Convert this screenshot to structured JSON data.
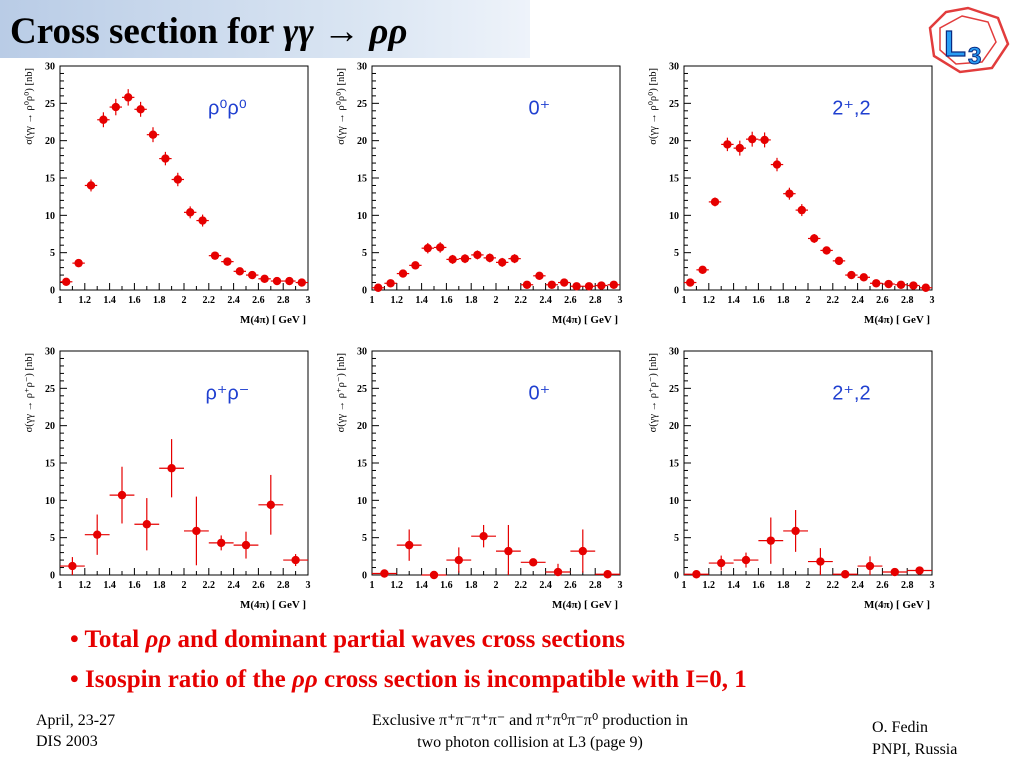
{
  "title": {
    "text": "Cross section for ",
    "formula": "γγ → ρρ"
  },
  "logo": {
    "text": "L",
    "sub": "3"
  },
  "plot_axis": {
    "xlabel": "M(4π) [ GeV ]",
    "x_ticks": [
      "1",
      "1.2",
      "1.4",
      "1.6",
      "1.8",
      "2",
      "2.2",
      "2.4",
      "2.6",
      "2.8",
      "3"
    ],
    "y_ticks": [
      "0",
      "5",
      "10",
      "15",
      "20",
      "25",
      "30"
    ],
    "ylabel_neutral": "σ(γγ → ρ⁰ρ⁰) [nb]",
    "ylabel_charged": "σ(γγ → ρ⁺ρ⁻) [nb]"
  },
  "chart_data": [
    {
      "type": "scatter",
      "label": "ρ⁰ρ⁰",
      "xlim": [
        1,
        3
      ],
      "ylim": [
        0,
        30
      ],
      "points": [
        {
          "x": 1.05,
          "y": 1.1,
          "err": 0.4
        },
        {
          "x": 1.15,
          "y": 3.6,
          "err": 0.5
        },
        {
          "x": 1.25,
          "y": 14.0,
          "err": 0.8
        },
        {
          "x": 1.35,
          "y": 22.8,
          "err": 1.0
        },
        {
          "x": 1.45,
          "y": 24.5,
          "err": 1.1
        },
        {
          "x": 1.55,
          "y": 25.8,
          "err": 1.1
        },
        {
          "x": 1.65,
          "y": 24.2,
          "err": 1.0
        },
        {
          "x": 1.75,
          "y": 20.8,
          "err": 1.0
        },
        {
          "x": 1.85,
          "y": 17.6,
          "err": 0.9
        },
        {
          "x": 1.95,
          "y": 14.8,
          "err": 0.9
        },
        {
          "x": 2.05,
          "y": 10.4,
          "err": 0.8
        },
        {
          "x": 2.15,
          "y": 9.3,
          "err": 0.8
        },
        {
          "x": 2.25,
          "y": 4.6,
          "err": 0.5
        },
        {
          "x": 2.35,
          "y": 3.8,
          "err": 0.5
        },
        {
          "x": 2.45,
          "y": 2.5,
          "err": 0.4
        },
        {
          "x": 2.55,
          "y": 2.0,
          "err": 0.3
        },
        {
          "x": 2.65,
          "y": 1.5,
          "err": 0.3
        },
        {
          "x": 2.75,
          "y": 1.2,
          "err": 0.3
        },
        {
          "x": 2.85,
          "y": 1.2,
          "err": 0.3
        },
        {
          "x": 2.95,
          "y": 1.0,
          "err": 0.3
        }
      ]
    },
    {
      "type": "scatter",
      "label": "0⁺",
      "xlim": [
        1,
        3
      ],
      "ylim": [
        0,
        30
      ],
      "points": [
        {
          "x": 1.05,
          "y": 0.3,
          "err": 0.3
        },
        {
          "x": 1.15,
          "y": 0.9,
          "err": 0.3
        },
        {
          "x": 1.25,
          "y": 2.2,
          "err": 0.4
        },
        {
          "x": 1.35,
          "y": 3.3,
          "err": 0.5
        },
        {
          "x": 1.45,
          "y": 5.6,
          "err": 0.7
        },
        {
          "x": 1.55,
          "y": 5.7,
          "err": 0.7
        },
        {
          "x": 1.65,
          "y": 4.1,
          "err": 0.6
        },
        {
          "x": 1.75,
          "y": 4.2,
          "err": 0.6
        },
        {
          "x": 1.85,
          "y": 4.7,
          "err": 0.6
        },
        {
          "x": 1.95,
          "y": 4.3,
          "err": 0.6
        },
        {
          "x": 2.05,
          "y": 3.7,
          "err": 0.6
        },
        {
          "x": 2.15,
          "y": 4.2,
          "err": 0.6
        },
        {
          "x": 2.25,
          "y": 0.7,
          "err": 0.3
        },
        {
          "x": 2.35,
          "y": 1.9,
          "err": 0.4
        },
        {
          "x": 2.45,
          "y": 0.7,
          "err": 0.3
        },
        {
          "x": 2.55,
          "y": 1.0,
          "err": 0.3
        },
        {
          "x": 2.65,
          "y": 0.5,
          "err": 0.3
        },
        {
          "x": 2.75,
          "y": 0.5,
          "err": 0.3
        },
        {
          "x": 2.85,
          "y": 0.6,
          "err": 0.3
        },
        {
          "x": 2.95,
          "y": 0.7,
          "err": 0.3
        }
      ]
    },
    {
      "type": "scatter",
      "label": "2⁺,2",
      "xlim": [
        1,
        3
      ],
      "ylim": [
        0,
        30
      ],
      "points": [
        {
          "x": 1.05,
          "y": 1.0,
          "err": 0.4
        },
        {
          "x": 1.15,
          "y": 2.7,
          "err": 0.5
        },
        {
          "x": 1.25,
          "y": 11.8,
          "err": 0.6
        },
        {
          "x": 1.35,
          "y": 19.5,
          "err": 0.9
        },
        {
          "x": 1.45,
          "y": 19.0,
          "err": 1.0
        },
        {
          "x": 1.55,
          "y": 20.2,
          "err": 1.0
        },
        {
          "x": 1.65,
          "y": 20.1,
          "err": 1.0
        },
        {
          "x": 1.75,
          "y": 16.8,
          "err": 0.9
        },
        {
          "x": 1.85,
          "y": 12.9,
          "err": 0.8
        },
        {
          "x": 1.95,
          "y": 10.7,
          "err": 0.8
        },
        {
          "x": 2.05,
          "y": 6.9,
          "err": 0.6
        },
        {
          "x": 2.15,
          "y": 5.3,
          "err": 0.5
        },
        {
          "x": 2.25,
          "y": 3.9,
          "err": 0.5
        },
        {
          "x": 2.35,
          "y": 2.0,
          "err": 0.4
        },
        {
          "x": 2.45,
          "y": 1.7,
          "err": 0.3
        },
        {
          "x": 2.55,
          "y": 0.9,
          "err": 0.3
        },
        {
          "x": 2.65,
          "y": 0.8,
          "err": 0.3
        },
        {
          "x": 2.75,
          "y": 0.7,
          "err": 0.3
        },
        {
          "x": 2.85,
          "y": 0.6,
          "err": 0.3
        },
        {
          "x": 2.95,
          "y": 0.3,
          "err": 0.3
        }
      ]
    },
    {
      "type": "scatter",
      "label": "ρ⁺ρ⁻",
      "xlim": [
        1,
        3
      ],
      "ylim": [
        0,
        30
      ],
      "points": [
        {
          "x": 1.1,
          "y": 1.2,
          "err": 1.2
        },
        {
          "x": 1.3,
          "y": 5.4,
          "err": 2.7
        },
        {
          "x": 1.5,
          "y": 10.7,
          "err": 3.8
        },
        {
          "x": 1.7,
          "y": 6.8,
          "err": 3.5
        },
        {
          "x": 1.9,
          "y": 14.3,
          "err": 3.9
        },
        {
          "x": 2.1,
          "y": 5.9,
          "err": 4.6
        },
        {
          "x": 2.3,
          "y": 4.3,
          "err": 1.0
        },
        {
          "x": 2.5,
          "y": 4.0,
          "err": 1.8
        },
        {
          "x": 2.7,
          "y": 9.4,
          "err": 4.0
        },
        {
          "x": 2.9,
          "y": 2.0,
          "err": 0.8
        }
      ]
    },
    {
      "type": "scatter",
      "label": "0⁺",
      "xlim": [
        1,
        3
      ],
      "ylim": [
        0,
        30
      ],
      "points": [
        {
          "x": 1.1,
          "y": 0.2,
          "err": 0.4
        },
        {
          "x": 1.3,
          "y": 4.0,
          "err": 2.1
        },
        {
          "x": 1.5,
          "y": 0.0,
          "err": 0.3
        },
        {
          "x": 1.7,
          "y": 2.0,
          "err": 1.7
        },
        {
          "x": 1.9,
          "y": 5.2,
          "err": 1.5
        },
        {
          "x": 2.1,
          "y": 3.2,
          "err": 3.5
        },
        {
          "x": 2.3,
          "y": 1.7,
          "err": 0.5
        },
        {
          "x": 2.5,
          "y": 0.4,
          "err": 1.1
        },
        {
          "x": 2.7,
          "y": 3.2,
          "err": 2.9
        },
        {
          "x": 2.9,
          "y": 0.1,
          "err": 0.3
        }
      ]
    },
    {
      "type": "scatter",
      "label": "2⁺,2",
      "xlim": [
        1,
        3
      ],
      "ylim": [
        0,
        30
      ],
      "points": [
        {
          "x": 1.1,
          "y": 0.1,
          "err": 0.3
        },
        {
          "x": 1.3,
          "y": 1.6,
          "err": 1.0
        },
        {
          "x": 1.5,
          "y": 2.0,
          "err": 1.0
        },
        {
          "x": 1.7,
          "y": 4.6,
          "err": 3.1
        },
        {
          "x": 1.9,
          "y": 5.9,
          "err": 2.8
        },
        {
          "x": 2.1,
          "y": 1.8,
          "err": 1.8
        },
        {
          "x": 2.3,
          "y": 0.1,
          "err": 0.3
        },
        {
          "x": 2.5,
          "y": 1.2,
          "err": 1.3
        },
        {
          "x": 2.7,
          "y": 0.4,
          "err": 0.4
        },
        {
          "x": 2.9,
          "y": 0.6,
          "err": 0.3
        }
      ]
    }
  ],
  "bullets": [
    {
      "prefix": "• Total ",
      "symbol": "ρρ",
      "suffix": " and dominant partial waves cross sections"
    },
    {
      "prefix": "• Isospin ratio of the ",
      "symbol": "ρρ",
      "suffix": " cross section is incompatible with I=0, 1"
    }
  ],
  "footer": {
    "date": "April, 23-27",
    "conference": "DIS 2003",
    "center_line1": "Exclusive π⁺π⁻π⁺π⁻ and π⁺π⁰π⁻π⁰ production in",
    "center_line2": "two photon collision at L3 (page 9)",
    "author": "O. Fedin",
    "institute": "PNPI, Russia"
  },
  "colors": {
    "marker": "#e60000",
    "label": "#1f3fd0",
    "bullet": "#e60000",
    "title_bg": "#c7d6ec"
  }
}
